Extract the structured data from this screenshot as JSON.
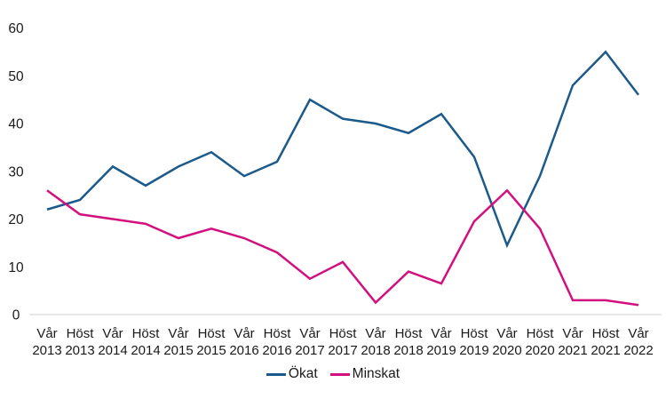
{
  "chart_data": {
    "type": "line",
    "title": "",
    "xlabel": "",
    "ylabel": "",
    "categories": [
      {
        "season": "Vår",
        "year": "2013"
      },
      {
        "season": "Höst",
        "year": "2013"
      },
      {
        "season": "Vår",
        "year": "2014"
      },
      {
        "season": "Höst",
        "year": "2014"
      },
      {
        "season": "Vår",
        "year": "2015"
      },
      {
        "season": "Höst",
        "year": "2015"
      },
      {
        "season": "Vår",
        "year": "2016"
      },
      {
        "season": "Höst",
        "year": "2016"
      },
      {
        "season": "Vår",
        "year": "2017"
      },
      {
        "season": "Höst",
        "year": "2017"
      },
      {
        "season": "Vår",
        "year": "2018"
      },
      {
        "season": "Höst",
        "year": "2018"
      },
      {
        "season": "Vår",
        "year": "2019"
      },
      {
        "season": "Höst",
        "year": "2019"
      },
      {
        "season": "Vår",
        "year": "2020"
      },
      {
        "season": "Höst",
        "year": "2020"
      },
      {
        "season": "Vår",
        "year": "2021"
      },
      {
        "season": "Höst",
        "year": "2021"
      },
      {
        "season": "Vår",
        "year": "2022"
      }
    ],
    "series": [
      {
        "name": "Ökat",
        "color": "#1b5a8a",
        "values": [
          22,
          24,
          31,
          27,
          31,
          34,
          29,
          32,
          45,
          41,
          40,
          38,
          42,
          33,
          14.5,
          29,
          48,
          55,
          46
        ]
      },
      {
        "name": "Minskat",
        "color": "#d2117e",
        "values": [
          26,
          21,
          20,
          19,
          16,
          18,
          16,
          13,
          7.5,
          11,
          2.5,
          9,
          6.5,
          19.5,
          26,
          18,
          3,
          3,
          2
        ]
      }
    ],
    "ylim": [
      0,
      60
    ],
    "yticks": [
      0,
      10,
      20,
      30,
      40,
      50,
      60
    ],
    "grid": false,
    "legend_position": "bottom-center"
  },
  "colors": {
    "background": "#ffffff",
    "text": "#1a1a1a",
    "axis_line": "#d9d9d9"
  }
}
